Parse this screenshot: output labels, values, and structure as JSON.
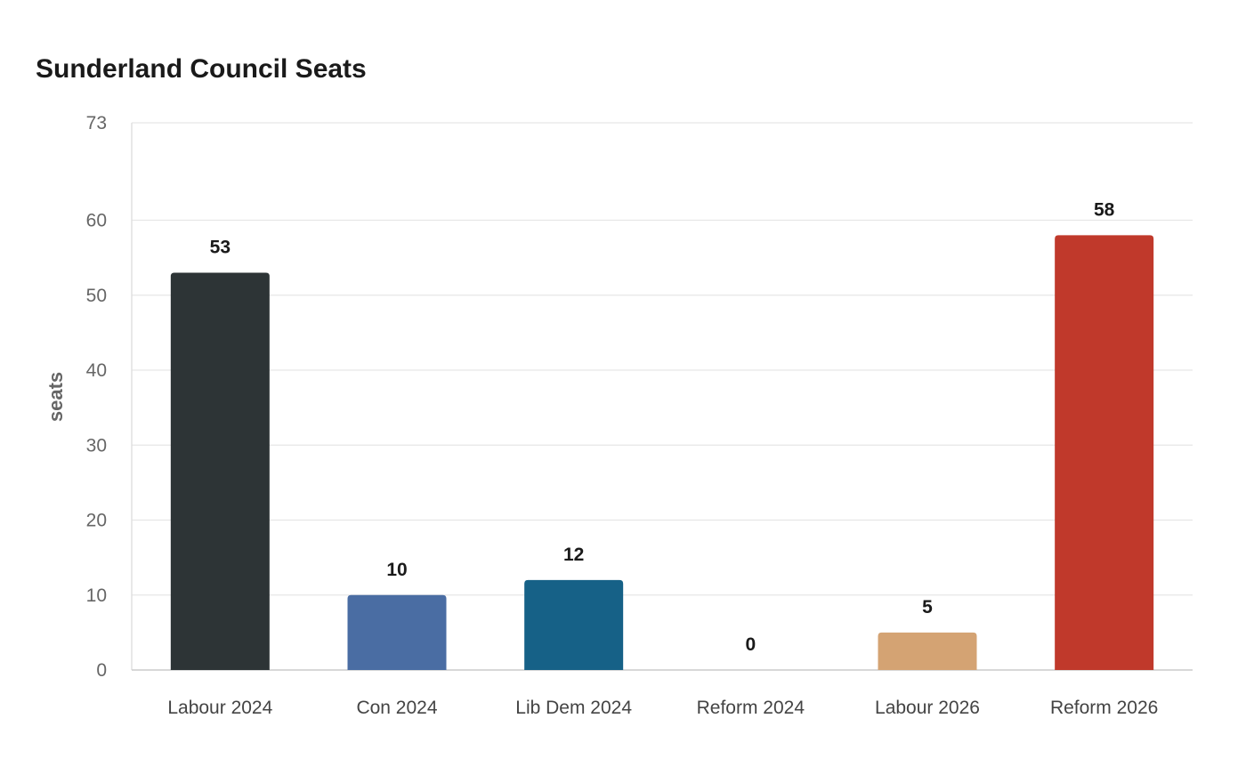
{
  "chart_data": {
    "type": "bar",
    "title": "Sunderland Council Seats",
    "xlabel": "",
    "ylabel": "seats",
    "ylim": [
      0,
      73
    ],
    "yticks": [
      0,
      10,
      20,
      30,
      40,
      50,
      60,
      73
    ],
    "grid": true,
    "categories": [
      "Labour 2024",
      "Con 2024",
      "Lib Dem 2024",
      "Reform 2024",
      "Labour 2026",
      "Reform 2026"
    ],
    "values": [
      53,
      10,
      12,
      0,
      5,
      58
    ],
    "colors": [
      "#2d3436",
      "#4a6da3",
      "#166187",
      "#d9d9d9",
      "#d4a373",
      "#c0392b"
    ]
  }
}
